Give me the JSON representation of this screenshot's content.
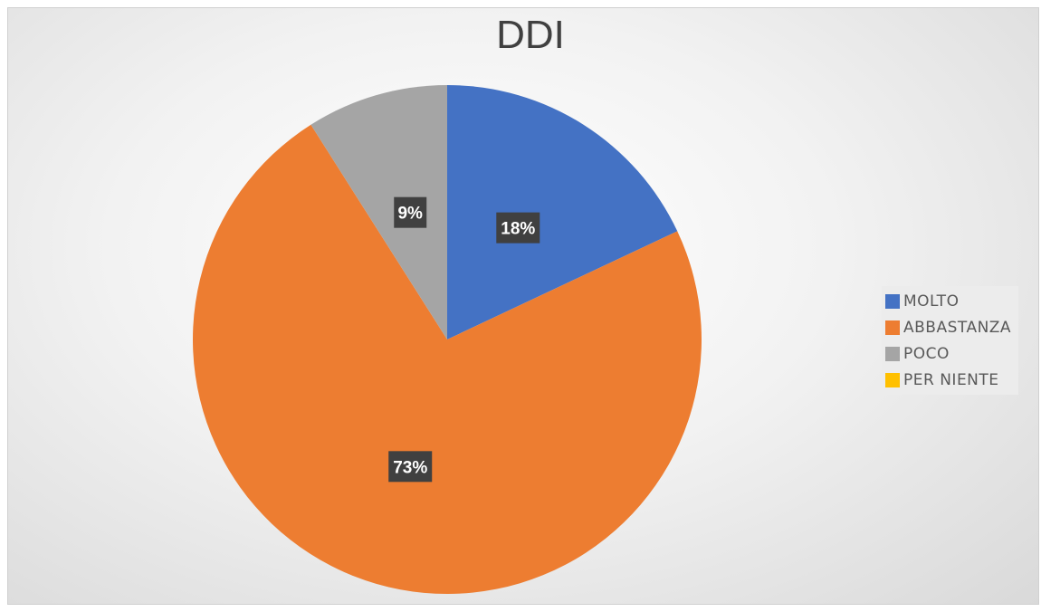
{
  "chart_data": {
    "type": "pie",
    "title": "DDI",
    "categories": [
      "MOLTO",
      "ABBASTANZA",
      "POCO",
      "PER NIENTE"
    ],
    "values": [
      18,
      73,
      9,
      0
    ],
    "data_labels": [
      "18%",
      "73%",
      "9%",
      ""
    ],
    "colors": [
      "#4472C4",
      "#ED7D31",
      "#A5A5A5",
      "#FFC000"
    ],
    "legend_position": "right"
  }
}
